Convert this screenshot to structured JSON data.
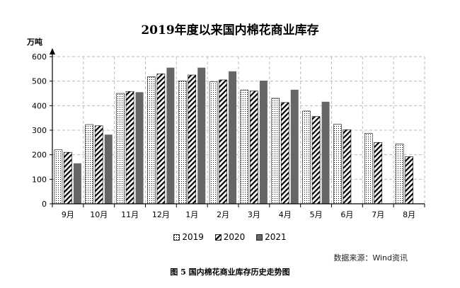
{
  "chart_data": {
    "type": "bar",
    "title": "2019年度以来国内棉花商业库存",
    "ylabel": "万吨",
    "xlabel": "",
    "ylim": [
      0,
      600
    ],
    "yticks": [
      0,
      100,
      200,
      300,
      400,
      500,
      600
    ],
    "grid": true,
    "legend_placement": "bottom",
    "categories": [
      "9月",
      "10月",
      "11月",
      "12月",
      "1月",
      "2月",
      "3月",
      "4月",
      "5月",
      "6月",
      "7月",
      "8月"
    ],
    "series": [
      {
        "name": "2019",
        "pattern": "dots",
        "values": [
          220,
          323,
          450,
          518,
          500,
          497,
          464,
          430,
          378,
          324,
          287,
          244
        ]
      },
      {
        "name": "2020",
        "pattern": "diagonal",
        "values": [
          210,
          318,
          458,
          530,
          525,
          505,
          460,
          413,
          356,
          302,
          250,
          192
        ]
      },
      {
        "name": "2021",
        "pattern": "solid",
        "color": "#666666",
        "values": [
          165,
          282,
          455,
          555,
          555,
          540,
          502,
          465,
          416,
          null,
          null,
          null
        ]
      }
    ]
  },
  "source": "数据来源：Wind资讯",
  "caption": "图 5   国内棉花商业库存历史走势图"
}
